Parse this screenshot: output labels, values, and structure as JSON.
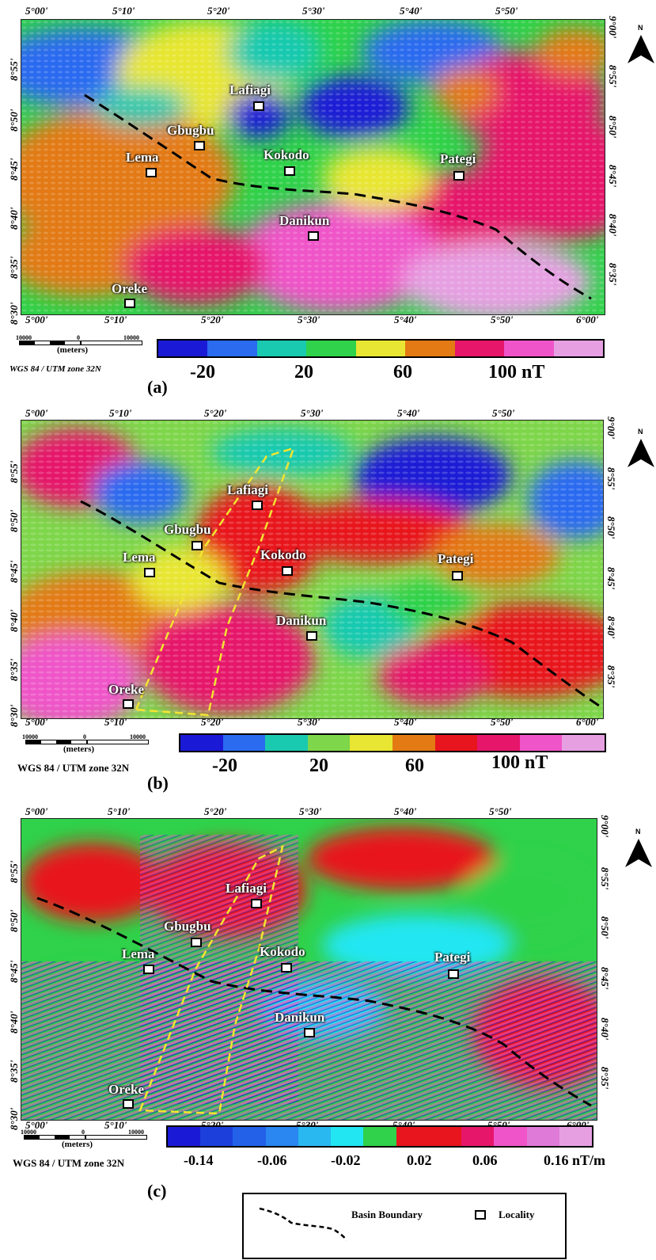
{
  "lon_labels": [
    "5°00'",
    "5°10'",
    "5°20'",
    "5°30'",
    "5°40'",
    "5°50'",
    "6°00'"
  ],
  "lat_labels": [
    "8°55'",
    "8°50'",
    "8°45'",
    "8°40'",
    "8°35'",
    "8°30'"
  ],
  "lat_top_right": "9°00'",
  "north_label": "N",
  "localities": {
    "lafiagi": "Lafiagi",
    "gbugbu": "Gbugbu",
    "lema": "Lema",
    "kokodo": "Kokodo",
    "pategi": "Pategi",
    "danikun": "Danikun",
    "oreke": "Oreke"
  },
  "scale": {
    "left": "10000",
    "mid": "0",
    "right": "10000",
    "unit": "(meters)"
  },
  "crs": "WGS 84 / UTM zone 32N",
  "panels": {
    "a": {
      "label": "(a)",
      "ticks": [
        "-20",
        "20",
        "60",
        "100 nT"
      ],
      "colors": [
        "#1a1ad6",
        "#2a6bf0",
        "#19c9b0",
        "#2fd24a",
        "#e8e632",
        "#e37a14",
        "#e6166a",
        "#ef55c8",
        "#e6a0e2"
      ]
    },
    "b": {
      "label": "(b)",
      "ticks": [
        "-20",
        "20",
        "60",
        "100 nT"
      ],
      "colors": [
        "#1a1ad6",
        "#2a6bf0",
        "#19c9b0",
        "#7ed64a",
        "#e8e632",
        "#e37a14",
        "#e8141e",
        "#e6166a",
        "#ef55c8",
        "#e6a0e2"
      ]
    },
    "c": {
      "label": "(c)",
      "ticks": [
        "-0.14",
        "-0.06",
        "-0.02",
        "0.02",
        "0.06",
        "0.16 nT/m"
      ],
      "colors": [
        "#1a1ad6",
        "#1c3fdc",
        "#2361e8",
        "#2a86f0",
        "#2ab8f0",
        "#22e6f2",
        "#2fd24a",
        "#e8141e",
        "#e8141e",
        "#e6166a",
        "#ef55c8",
        "#e07ad8",
        "#e6a0e2"
      ]
    }
  },
  "legend": {
    "basin": "Basin Boundary",
    "locality": "Locality"
  },
  "colors": {
    "basin_boundary": "#000000",
    "structural_trend": "#f2e531"
  }
}
